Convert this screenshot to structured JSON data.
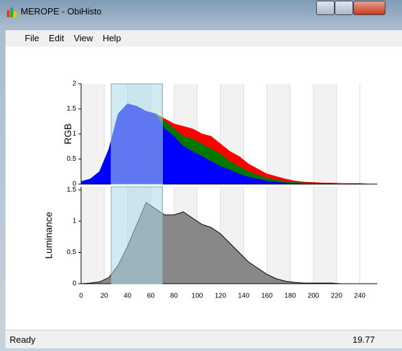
{
  "window": {
    "title": "MEROPE - ObiHisto"
  },
  "menu": [
    "File",
    "Edit",
    "View",
    "Help"
  ],
  "status": {
    "text": "Ready",
    "value": "19.77"
  },
  "chart_data": [
    {
      "type": "area",
      "y_label": "RGB",
      "x": [
        0,
        8,
        16,
        24,
        32,
        40,
        48,
        56,
        64,
        72,
        80,
        88,
        96,
        104,
        112,
        120,
        128,
        136,
        144,
        152,
        160,
        168,
        176,
        184,
        192,
        200,
        208,
        216,
        224,
        232,
        240,
        248
      ],
      "series": [
        {
          "color": "#ff0000",
          "values": [
            0.02,
            0.05,
            0.1,
            0.3,
            0.9,
            1.3,
            1.4,
            1.4,
            1.4,
            1.3,
            1.2,
            1.15,
            1.1,
            1.0,
            0.95,
            0.8,
            0.65,
            0.55,
            0.4,
            0.3,
            0.2,
            0.15,
            0.1,
            0.06,
            0.04,
            0.03,
            0.02,
            0.02,
            0.01,
            0.01,
            0.01,
            0
          ]
        },
        {
          "color": "#007800",
          "values": [
            0.02,
            0.05,
            0.12,
            0.4,
            1.0,
            1.4,
            1.5,
            1.45,
            1.4,
            1.25,
            1.1,
            0.95,
            0.9,
            0.8,
            0.7,
            0.6,
            0.45,
            0.35,
            0.25,
            0.18,
            0.12,
            0.08,
            0.05,
            0.03,
            0.02,
            0.01,
            0.01,
            0,
            0,
            0,
            0,
            0
          ]
        },
        {
          "color": "#0000ff",
          "values": [
            0.05,
            0.1,
            0.25,
            0.7,
            1.4,
            1.6,
            1.55,
            1.45,
            1.4,
            1.1,
            0.95,
            0.75,
            0.65,
            0.55,
            0.45,
            0.35,
            0.28,
            0.2,
            0.14,
            0.1,
            0.06,
            0.04,
            0.02,
            0.01,
            0,
            0,
            0,
            0,
            0,
            0,
            0,
            0
          ]
        }
      ],
      "xlim": [
        0,
        255
      ],
      "ylim": [
        0,
        2
      ],
      "yticks": [
        0,
        0.5,
        1,
        1.5,
        2
      ],
      "grid_x": [
        0,
        20,
        40,
        60,
        80,
        100,
        120,
        140,
        160,
        180,
        200,
        220,
        240
      ],
      "selection": [
        26,
        70
      ]
    },
    {
      "type": "area",
      "y_label": "Luminance",
      "x": [
        0,
        8,
        16,
        24,
        32,
        40,
        48,
        56,
        64,
        72,
        80,
        88,
        96,
        104,
        112,
        120,
        128,
        136,
        144,
        152,
        160,
        168,
        176,
        184,
        192,
        200,
        208,
        216,
        224,
        232,
        240,
        248
      ],
      "series": [
        {
          "color": "#888888",
          "values": [
            0,
            0.01,
            0.03,
            0.1,
            0.3,
            0.6,
            0.95,
            1.3,
            1.2,
            1.1,
            1.1,
            1.15,
            1.05,
            0.95,
            0.9,
            0.8,
            0.65,
            0.5,
            0.35,
            0.25,
            0.15,
            0.08,
            0.04,
            0.02,
            0.01,
            0.01,
            0.01,
            0.01,
            0,
            0,
            0,
            0
          ]
        }
      ],
      "xlim": [
        0,
        255
      ],
      "ylim": [
        0,
        1.55
      ],
      "yticks": [
        0,
        0.5,
        1,
        1.5
      ],
      "xticks": [
        0,
        20,
        40,
        60,
        80,
        100,
        120,
        140,
        160,
        180,
        200,
        220,
        240
      ],
      "selection": [
        26,
        70
      ]
    }
  ]
}
